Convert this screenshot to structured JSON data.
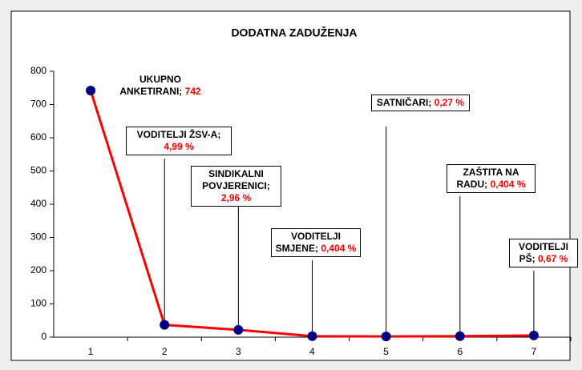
{
  "chart_data": {
    "type": "line",
    "title": "DODATNA ZADUŽENJA",
    "categories": [
      "1",
      "2",
      "3",
      "4",
      "5",
      "6",
      "7"
    ],
    "series": [
      {
        "name": "DODATNA ZADUŽENJA",
        "color": "#ff0000",
        "marker_color": "#000080",
        "values": [
          742,
          37,
          22,
          3,
          2,
          3,
          5
        ]
      }
    ],
    "point_labels": [
      {
        "name": "UKUPNO ANKETIRANI;",
        "text": "742"
      },
      {
        "name": "VODITELJI ŽSV-A;",
        "text": "4,99 %"
      },
      {
        "name": "SINDIKALNI POVJERENICI;",
        "text": "2,96 %"
      },
      {
        "name": "VODITELJI SMJENE;",
        "text": "0,404 %"
      },
      {
        "name": "SATNIČARI;",
        "text": "0,27 %"
      },
      {
        "name": "ZAŠTITA NA RADU;",
        "text": "0,404 %"
      },
      {
        "name": "VODITELJI PŠ;",
        "text": "0,67 %"
      }
    ],
    "ylim": [
      0,
      800
    ],
    "yticks": [
      0,
      100,
      200,
      300,
      400,
      500,
      600,
      700,
      800
    ],
    "grid": false,
    "legend": false
  }
}
